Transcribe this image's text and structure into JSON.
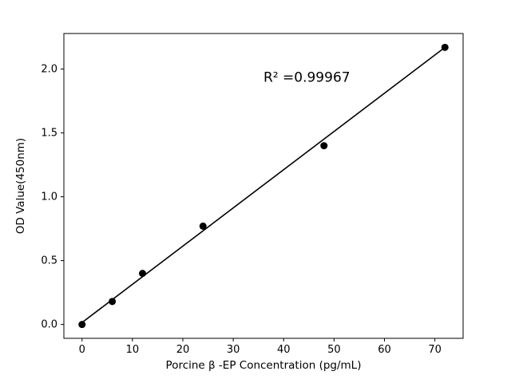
{
  "chart_data": {
    "type": "scatter",
    "title": "",
    "xlabel": "Porcine β -EP Concentration (pg/mL)",
    "ylabel": "OD Value(450nm)",
    "annotation": {
      "text": "R² =0.99967",
      "x": 36,
      "y": 1.9
    },
    "x": [
      0,
      6,
      12,
      24,
      48,
      72
    ],
    "y": [
      0.0,
      0.18,
      0.4,
      0.77,
      1.4,
      2.17
    ],
    "fit_line": {
      "x0": 0,
      "y0": 0.015,
      "x1": 72,
      "y1": 2.17
    },
    "xlim": [
      -3.6,
      75.6
    ],
    "ylim": [
      -0.1085,
      2.2785
    ],
    "xticks": [
      0,
      10,
      20,
      30,
      40,
      50,
      60,
      70
    ],
    "yticks": [
      0.0,
      0.5,
      1.0,
      1.5,
      2.0
    ],
    "grid": false,
    "legend": null,
    "point_color": "#000000",
    "line_color": "#000000",
    "background": "#ffffff"
  }
}
